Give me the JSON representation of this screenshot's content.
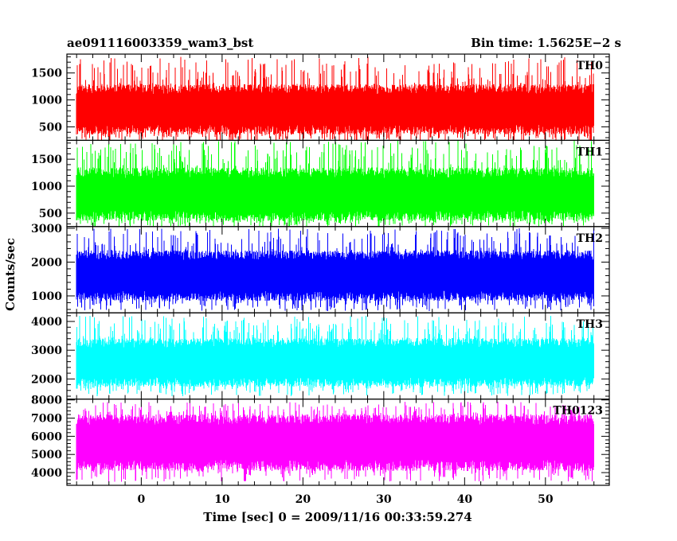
{
  "header": {
    "title": "ae091116003359_wam3_bst",
    "bin_time": "Bin time: 1.5625E−2 s"
  },
  "axes": {
    "xlabel": "Time [sec] 0 = 2009/11/16 00:33:59.274",
    "ylabel": "Counts/sec"
  },
  "chart_data": {
    "type": "line",
    "title": "ae091116003359_wam3_bst",
    "subtitle": "Bin time: 1.5625E−2 s",
    "xlabel": "Time [sec] 0 = 2009/11/16 00:33:59.274",
    "ylabel": "Counts/sec",
    "xlim": [
      -9.2,
      57.9
    ],
    "x_range": [
      -8,
      56
    ],
    "bin_time": 0.015625,
    "x_ticks": [
      0,
      10,
      20,
      30,
      40,
      50
    ],
    "x_tick_labels": [
      "0",
      "10",
      "20",
      "30",
      "40",
      "50"
    ],
    "series": [
      {
        "name": "TH0",
        "color": "#ff0000",
        "ylim": [
          250,
          1850
        ],
        "mean": 800,
        "band": [
          450,
          1200
        ],
        "spike_min": 200,
        "spike_max": 1800,
        "y_ticks": [
          500,
          1000,
          1500
        ],
        "y_tick_labels": [
          "500",
          "1000",
          "1500"
        ]
      },
      {
        "name": "TH1",
        "color": "#00ff00",
        "ylim": [
          250,
          1850
        ],
        "mean": 830,
        "band": [
          450,
          1250
        ],
        "spike_min": 230,
        "spike_max": 1850,
        "y_ticks": [
          500,
          1000,
          1500
        ],
        "y_tick_labels": [
          "500",
          "1000",
          "1500"
        ]
      },
      {
        "name": "TH2",
        "color": "#0000ff",
        "ylim": [
          500,
          3050
        ],
        "mean": 1600,
        "band": [
          1000,
          2200
        ],
        "spike_min": 550,
        "spike_max": 3000,
        "y_ticks": [
          1000,
          2000,
          3000
        ],
        "y_tick_labels": [
          "1000",
          "2000",
          "3000"
        ]
      },
      {
        "name": "TH3",
        "color": "#00ffff",
        "ylim": [
          1300,
          4300
        ],
        "mean": 2500,
        "band": [
          1900,
          3250
        ],
        "spike_min": 1400,
        "spike_max": 4200,
        "y_ticks": [
          2000,
          3000,
          4000
        ],
        "y_tick_labels": [
          "2000",
          "3000",
          "4000"
        ]
      },
      {
        "name": "TH0123",
        "color": "#ff00ff",
        "ylim": [
          3300,
          8050
        ],
        "mean": 5600,
        "band": [
          4400,
          6900
        ],
        "spike_min": 3500,
        "spike_max": 7900,
        "y_ticks": [
          4000,
          5000,
          6000,
          7000,
          8000
        ],
        "y_tick_labels": [
          "4000",
          "5000",
          "6000",
          "7000",
          "8000"
        ]
      }
    ]
  }
}
